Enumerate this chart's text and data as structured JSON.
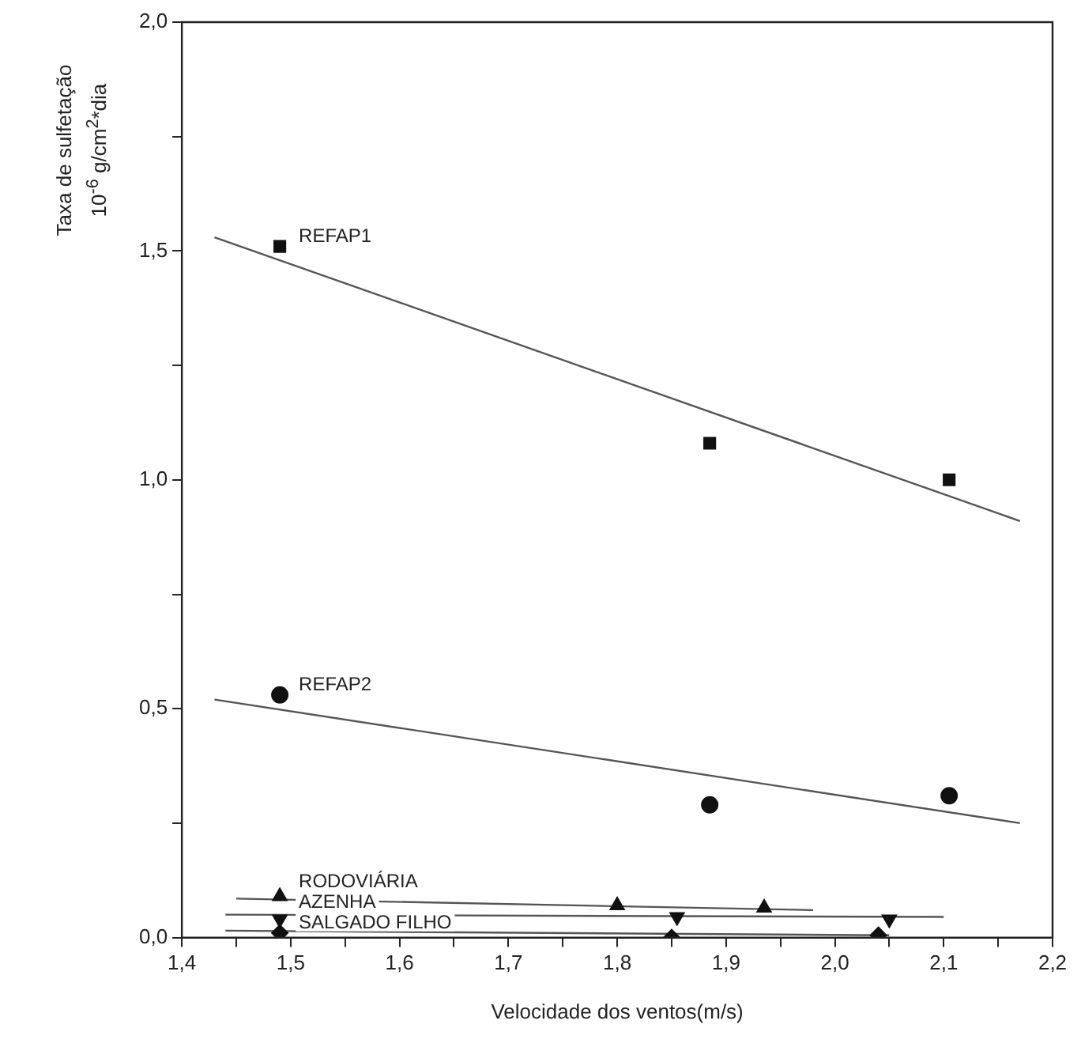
{
  "chart_data": {
    "type": "scatter",
    "xlabel": "Velocidade dos ventos(m/s)",
    "ylabel": "Taxa de sulfetação\n10$^{-6}$ g/cm$^{2}$*dia",
    "xlim": [
      1.4,
      2.2
    ],
    "ylim": [
      0,
      2
    ],
    "xticks": [
      {
        "value": 1.4,
        "label": "1,4"
      },
      {
        "value": 1.45,
        "label": null
      },
      {
        "value": 1.5,
        "label": "1,5"
      },
      {
        "value": 1.55,
        "label": null
      },
      {
        "value": 1.6,
        "label": "1,6"
      },
      {
        "value": 1.65,
        "label": null
      },
      {
        "value": 1.7,
        "label": "1,7"
      },
      {
        "value": 1.75,
        "label": null
      },
      {
        "value": 1.8,
        "label": "1,8"
      },
      {
        "value": 1.85,
        "label": null
      },
      {
        "value": 1.9,
        "label": "1,9"
      },
      {
        "value": 1.95,
        "label": null
      },
      {
        "value": 2.0,
        "label": "2,0"
      },
      {
        "value": 2.05,
        "label": null
      },
      {
        "value": 2.1,
        "label": "2,1"
      },
      {
        "value": 2.15,
        "label": null
      },
      {
        "value": 2.2,
        "label": "2,2"
      }
    ],
    "yticks": [
      {
        "value": 0,
        "label": "0,0"
      },
      {
        "value": 0.25,
        "label": null
      },
      {
        "value": 0.5,
        "label": "0,5"
      },
      {
        "value": 0.75,
        "label": null
      },
      {
        "value": 1.0,
        "label": "1,0"
      },
      {
        "value": 1.25,
        "label": null
      },
      {
        "value": 1.5,
        "label": "1,5"
      },
      {
        "value": 1.75,
        "label": null
      },
      {
        "value": 2.0,
        "label": "2,0"
      }
    ],
    "grid": false,
    "legend": false,
    "series": [
      {
        "name": "REFAP1",
        "marker": "square",
        "color": "#111111",
        "x": [
          1.49,
          1.885,
          2.105
        ],
        "values": [
          1.51,
          1.08,
          1.0
        ]
      },
      {
        "type": "line",
        "marker": "none",
        "color": "#555555",
        "x": [
          1.43,
          2.17
        ],
        "values": [
          1.53,
          0.91
        ]
      },
      {
        "name": "REFAP2",
        "marker": "circle",
        "color": "#111111",
        "x": [
          1.49,
          1.885,
          2.105
        ],
        "values": [
          0.53,
          0.29,
          0.31
        ]
      },
      {
        "type": "line",
        "marker": "none",
        "color": "#555555",
        "x": [
          1.43,
          2.17
        ],
        "values": [
          0.52,
          0.25
        ]
      },
      {
        "name": "RODOVIÁRIA",
        "marker": "triangle",
        "color": "#111111",
        "x": [
          1.49,
          1.8,
          1.935
        ],
        "values": [
          0.09,
          0.07,
          0.065
        ]
      },
      {
        "type": "line",
        "marker": "none",
        "color": "#555555",
        "x": [
          1.45,
          1.98
        ],
        "values": [
          0.085,
          0.06
        ]
      },
      {
        "name": "AZENHA",
        "marker": "triangle-down",
        "color": "#111111",
        "x": [
          1.49,
          1.855,
          2.05
        ],
        "values": [
          0.04,
          0.045,
          0.04
        ]
      },
      {
        "type": "line",
        "marker": "none",
        "color": "#555555",
        "x": [
          1.44,
          2.1
        ],
        "values": [
          0.05,
          0.045
        ]
      },
      {
        "name": "SALGADO FILHO",
        "marker": "diamond",
        "color": "#111111",
        "x": [
          1.49,
          1.85,
          2.04
        ],
        "values": [
          0.01,
          0.0,
          0.005
        ]
      },
      {
        "type": "line",
        "marker": "none",
        "color": "#555555",
        "x": [
          1.44,
          2.05
        ],
        "values": [
          0.015,
          0.005
        ]
      }
    ]
  }
}
